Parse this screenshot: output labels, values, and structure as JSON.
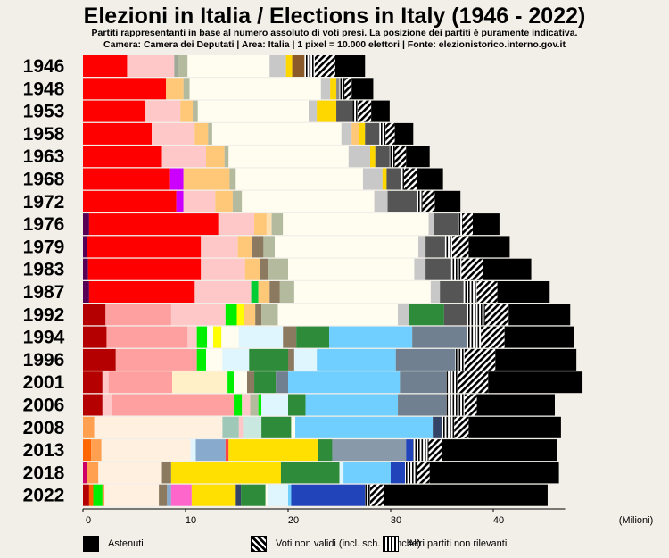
{
  "title": "Elezioni in Italia / Elections in Italy (1946 - 2022)",
  "subtitle_line1": "Partiti rappresentanti in base al numero assoluto di voti presi. La posizione dei partiti è puramente indicativa.",
  "subtitle_line2": "Camera: Camera dei Deputati | Area: Italia | 1 pixel = 10.000 elettori | Fonte: elezionistorico.interno.gov.it",
  "legend": {
    "astenuti": "Astenuti",
    "non_validi": "Voti non validi (incl. sch. bianche)",
    "altri": "Altri partiti non rilevanti"
  },
  "chart_data": {
    "type": "bar",
    "orientation": "horizontal-stacked",
    "xlabel": "(Milioni)",
    "xlim": [
      0,
      47
    ],
    "xticks": [
      0,
      10,
      20,
      30,
      40
    ],
    "categories": [
      "1946",
      "1948",
      "1953",
      "1958",
      "1963",
      "1968",
      "1972",
      "1976",
      "1979",
      "1983",
      "1987",
      "1992",
      "1994",
      "1996",
      "2001",
      "2006",
      "2008",
      "2013",
      "2018",
      "2022"
    ],
    "rows": [
      {
        "year": "1946",
        "segments": [
          [
            "#ff0000",
            4.3
          ],
          [
            "#ffc8c8",
            4.6
          ],
          [
            "#a0a898",
            0.4
          ],
          [
            "#b4ba9e",
            0.9
          ],
          [
            "#fffdf0",
            8.0
          ],
          [
            "#c8c8c8",
            1.6
          ],
          [
            "#ffd700",
            0.6
          ],
          [
            "#8b5a2b",
            1.2
          ],
          [
            "alt",
            1.0
          ],
          [
            "nv",
            2.0
          ],
          [
            "#000000",
            2.9
          ]
        ]
      },
      {
        "year": "1948",
        "segments": [
          [
            "#ff0000",
            8.1
          ],
          [
            "#ffc878",
            1.7
          ],
          [
            "#b4ba9e",
            0.6
          ],
          [
            "#fffdf0",
            12.8
          ],
          [
            "#c8c8c8",
            0.9
          ],
          [
            "#ffd700",
            0.6
          ],
          [
            "#8b8b8b",
            0.3
          ],
          [
            "alt",
            0.5
          ],
          [
            "nv",
            0.7
          ],
          [
            "#000000",
            2.1
          ]
        ]
      },
      {
        "year": "1953",
        "segments": [
          [
            "#ff0000",
            6.1
          ],
          [
            "#ffc8c8",
            3.4
          ],
          [
            "#ffc878",
            1.2
          ],
          [
            "#b4ba9e",
            0.5
          ],
          [
            "#fffdf0",
            10.8
          ],
          [
            "#c8c8c8",
            0.8
          ],
          [
            "#ffd700",
            1.9
          ],
          [
            "#555555",
            1.6
          ],
          [
            "alt",
            0.5
          ],
          [
            "nv",
            1.3
          ],
          [
            "#000000",
            1.8
          ]
        ]
      },
      {
        "year": "1958",
        "segments": [
          [
            "#ff0000",
            6.7
          ],
          [
            "#ffc8c8",
            4.2
          ],
          [
            "#ffc878",
            1.3
          ],
          [
            "#b4ba9e",
            0.4
          ],
          [
            "#fffdf0",
            12.6
          ],
          [
            "#c8c8c8",
            1.0
          ],
          [
            "#ffc878",
            0.7
          ],
          [
            "#ffd700",
            0.6
          ],
          [
            "#555555",
            1.4
          ],
          [
            "alt",
            0.6
          ],
          [
            "nv",
            0.9
          ],
          [
            "#000000",
            1.8
          ]
        ]
      },
      {
        "year": "1963",
        "segments": [
          [
            "#ff0000",
            7.7
          ],
          [
            "#ffc8c8",
            4.3
          ],
          [
            "#ffc878",
            1.8
          ],
          [
            "#b4ba9e",
            0.4
          ],
          [
            "#fffdf0",
            11.7
          ],
          [
            "#c8c8c8",
            2.1
          ],
          [
            "#ffd700",
            0.5
          ],
          [
            "#555555",
            1.4
          ],
          [
            "alt",
            0.5
          ],
          [
            "nv",
            1.1
          ],
          [
            "#000000",
            2.3
          ]
        ]
      },
      {
        "year": "1968",
        "segments": [
          [
            "#ff0000",
            8.5
          ],
          [
            "#cc00ff",
            1.3
          ],
          [
            "#ffc878",
            4.5
          ],
          [
            "#b4ba9e",
            0.6
          ],
          [
            "#fffdf0",
            12.4
          ],
          [
            "#c8c8c8",
            1.9
          ],
          [
            "#ffd700",
            0.4
          ],
          [
            "#555555",
            1.4
          ],
          [
            "alt",
            0.3
          ],
          [
            "nv",
            1.3
          ],
          [
            "#000000",
            2.5
          ]
        ]
      },
      {
        "year": "1972",
        "segments": [
          [
            "#ff0000",
            9.1
          ],
          [
            "#cc00ff",
            0.7
          ],
          [
            "#ffc8c8",
            3.1
          ],
          [
            "#ffc878",
            1.7
          ],
          [
            "#b4ba9e",
            0.9
          ],
          [
            "#fffdf0",
            12.9
          ],
          [
            "#c8c8c8",
            1.3
          ],
          [
            "#555555",
            2.9
          ],
          [
            "alt",
            0.5
          ],
          [
            "nv",
            1.2
          ],
          [
            "#000000",
            2.5
          ]
        ]
      },
      {
        "year": "1976",
        "segments": [
          [
            "#550055",
            0.6
          ],
          [
            "#ff0000",
            12.6
          ],
          [
            "#ffc8c8",
            3.5
          ],
          [
            "#ffc878",
            1.2
          ],
          [
            "#ffe0b0",
            0.5
          ],
          [
            "#b4ba9e",
            1.1
          ],
          [
            "#fffdf0",
            14.2
          ],
          [
            "#c8c8c8",
            0.5
          ],
          [
            "#555555",
            2.4
          ],
          [
            "alt",
            0.4
          ],
          [
            "nv",
            1.0
          ],
          [
            "#000000",
            2.6
          ]
        ]
      },
      {
        "year": "1979",
        "segments": [
          [
            "#550055",
            0.4
          ],
          [
            "#ff0000",
            11.1
          ],
          [
            "#ffc8c8",
            3.6
          ],
          [
            "#ffc878",
            1.4
          ],
          [
            "#8b7a60",
            1.1
          ],
          [
            "#b4ba9e",
            1.1
          ],
          [
            "#fffdf0",
            14.0
          ],
          [
            "#c8c8c8",
            0.7
          ],
          [
            "#555555",
            1.8
          ],
          [
            "alt",
            0.8
          ],
          [
            "nv",
            1.6
          ],
          [
            "#000000",
            4.0
          ]
        ]
      },
      {
        "year": "1983",
        "segments": [
          [
            "#550055",
            0.5
          ],
          [
            "#ff0000",
            11.0
          ],
          [
            "#ffc8c8",
            4.3
          ],
          [
            "#ffc878",
            1.5
          ],
          [
            "#8b7a60",
            0.8
          ],
          [
            "#b4ba9e",
            1.9
          ],
          [
            "#fffdf0",
            12.3
          ],
          [
            "#c8c8c8",
            1.1
          ],
          [
            "#555555",
            2.5
          ],
          [
            "alt",
            1.0
          ],
          [
            "nv",
            2.1
          ],
          [
            "#000000",
            4.7
          ]
        ]
      },
      {
        "year": "1987",
        "segments": [
          [
            "#550055",
            0.6
          ],
          [
            "#ff0000",
            10.3
          ],
          [
            "#ffc8c8",
            5.5
          ],
          [
            "#00cc33",
            0.7
          ],
          [
            "#ffc878",
            1.1
          ],
          [
            "#8b7a60",
            1.0
          ],
          [
            "#b4ba9e",
            1.4
          ],
          [
            "#fffdf0",
            13.3
          ],
          [
            "#c8c8c8",
            0.9
          ],
          [
            "#555555",
            2.3
          ],
          [
            "alt",
            1.3
          ],
          [
            "nv",
            2.0
          ],
          [
            "#000000",
            5.1
          ]
        ]
      },
      {
        "year": "1992",
        "segments": [
          [
            "#b40000",
            2.2
          ],
          [
            "#ffa0a0",
            6.4
          ],
          [
            "#ffc8c8",
            5.3
          ],
          [
            "#00ee00",
            1.1
          ],
          [
            "#ffff00",
            0.7
          ],
          [
            "#ffc878",
            1.1
          ],
          [
            "#8b7a60",
            0.6
          ],
          [
            "#b4ba9e",
            1.6
          ],
          [
            "#fffdf0",
            11.7
          ],
          [
            "#c8c8c8",
            1.1
          ],
          [
            "#2e8b3a",
            3.4
          ],
          [
            "#555555",
            2.2
          ],
          [
            "alt",
            1.8
          ],
          [
            "nv",
            2.3
          ],
          [
            "#000000",
            6.0
          ]
        ]
      },
      {
        "year": "1994",
        "segments": [
          [
            "#b40000",
            2.3
          ],
          [
            "#ffa0a0",
            7.9
          ],
          [
            "#ffc8c8",
            0.9
          ],
          [
            "#00ee00",
            1.0
          ],
          [
            "#fffdf0",
            0.6
          ],
          [
            "#ffff00",
            0.8
          ],
          [
            "#fffdf0",
            1.7
          ],
          [
            "#e0f6ff",
            4.3
          ],
          [
            "#8b7a60",
            1.3
          ],
          [
            "#2e8b3a",
            3.2
          ],
          [
            "#70cfff",
            8.1
          ],
          [
            "#708090",
            5.3
          ],
          [
            "alt",
            1.4
          ],
          [
            "nv",
            2.3
          ],
          [
            "#000000",
            6.8
          ]
        ]
      },
      {
        "year": "1996",
        "segments": [
          [
            "#b40000",
            3.2
          ],
          [
            "#ffa0a0",
            7.9
          ],
          [
            "#00ee00",
            0.9
          ],
          [
            "#fffdf0",
            1.6
          ],
          [
            "#e0f6ff",
            2.6
          ],
          [
            "#2e8b3a",
            3.8
          ],
          [
            "#8b7a60",
            0.6
          ],
          [
            "#e0f6ff",
            2.2
          ],
          [
            "#70cfff",
            7.7
          ],
          [
            "#708090",
            5.8
          ],
          [
            "alt",
            0.9
          ],
          [
            "nv",
            3.0
          ],
          [
            "#000000",
            7.9
          ]
        ]
      },
      {
        "year": "2001",
        "segments": [
          [
            "#b40000",
            1.9
          ],
          [
            "#ffc8c8",
            0.6
          ],
          [
            "#ffa0a0",
            6.2
          ],
          [
            "#fff0c8",
            5.4
          ],
          [
            "#00ee00",
            0.6
          ],
          [
            "#fffdf0",
            1.3
          ],
          [
            "#8b7a60",
            0.7
          ],
          [
            "#2e8b3a",
            2.1
          ],
          [
            "#708090",
            1.2
          ],
          [
            "#70cfff",
            10.9
          ],
          [
            "#708090",
            4.5
          ],
          [
            "alt",
            1.1
          ],
          [
            "nv",
            3.0
          ],
          [
            "#000000",
            9.2
          ]
        ]
      },
      {
        "year": "2006",
        "segments": [
          [
            "#b40000",
            1.9
          ],
          [
            "#ffc8c8",
            0.9
          ],
          [
            "#ffa0a0",
            11.9
          ],
          [
            "#00ee00",
            0.8
          ],
          [
            "#ffc8c8",
            0.8
          ],
          [
            "#b4ba9e",
            0.8
          ],
          [
            "#00ee00",
            0.3
          ],
          [
            "#e0f6ff",
            2.6
          ],
          [
            "#2e8b3a",
            1.7
          ],
          [
            "#70cfff",
            9.0
          ],
          [
            "#708090",
            4.7
          ],
          [
            "alt",
            1.8
          ],
          [
            "nv",
            1.2
          ],
          [
            "#000000",
            7.6
          ]
        ]
      },
      {
        "year": "2008",
        "segments": [
          [
            "#ffa050",
            1.1
          ],
          [
            "#fff0e0",
            12.5
          ],
          [
            "#a0c8b8",
            1.6
          ],
          [
            "#ffc8c8",
            0.4
          ],
          [
            "#c8e8e0",
            1.8
          ],
          [
            "#2e8b3a",
            2.9
          ],
          [
            "#fffdf0",
            0.4
          ],
          [
            "#70cfff",
            13.4
          ],
          [
            "#334466",
            0.9
          ],
          [
            "alt",
            1.2
          ],
          [
            "nv",
            1.4
          ],
          [
            "#000000",
            9.0
          ]
        ]
      },
      {
        "year": "2013",
        "segments": [
          [
            "#ff6600",
            0.8
          ],
          [
            "#ffa050",
            1.0
          ],
          [
            "#fff0e0",
            8.7
          ],
          [
            "#e0f6ff",
            0.5
          ],
          [
            "#88aacc",
            2.9
          ],
          [
            "#ff4444",
            0.3
          ],
          [
            "#ffe000",
            8.7
          ],
          [
            "#2e8b3a",
            1.4
          ],
          [
            "#8899aa",
            7.2
          ],
          [
            "#2244bb",
            0.7
          ],
          [
            "alt",
            1.5
          ],
          [
            "nv",
            1.3
          ],
          [
            "#000000",
            11.2
          ]
        ]
      },
      {
        "year": "2018",
        "segments": [
          [
            "#cc0066",
            0.4
          ],
          [
            "#ffa050",
            1.1
          ],
          [
            "#fff0e0",
            6.2
          ],
          [
            "#8b7a60",
            0.9
          ],
          [
            "#ffe000",
            10.7
          ],
          [
            "#2e8b3a",
            5.7
          ],
          [
            "#e0f6ff",
            0.4
          ],
          [
            "#70cfff",
            4.6
          ],
          [
            "#2244bb",
            1.4
          ],
          [
            "alt",
            1.2
          ],
          [
            "nv",
            1.2
          ],
          [
            "#000000",
            12.6
          ]
        ]
      },
      {
        "year": "2022",
        "segments": [
          [
            "#b40000",
            0.6
          ],
          [
            "#ff6600",
            0.4
          ],
          [
            "#00ee00",
            0.9
          ],
          [
            "#ffa050",
            0.2
          ],
          [
            "#fff0e0",
            5.3
          ],
          [
            "#8b7a60",
            0.8
          ],
          [
            "#88aacc",
            0.4
          ],
          [
            "#ff66cc",
            2.0
          ],
          [
            "#ffe000",
            4.3
          ],
          [
            "#334466",
            0.5
          ],
          [
            "#2e8b3a",
            2.4
          ],
          [
            "#fffdf0",
            0.2
          ],
          [
            "#e0f6ff",
            2.0
          ],
          [
            "#70cfff",
            0.3
          ],
          [
            "#2244bb",
            7.2
          ],
          [
            "alt",
            0.5
          ],
          [
            "nv",
            1.3
          ],
          [
            "#000000",
            16.0
          ]
        ]
      }
    ]
  }
}
